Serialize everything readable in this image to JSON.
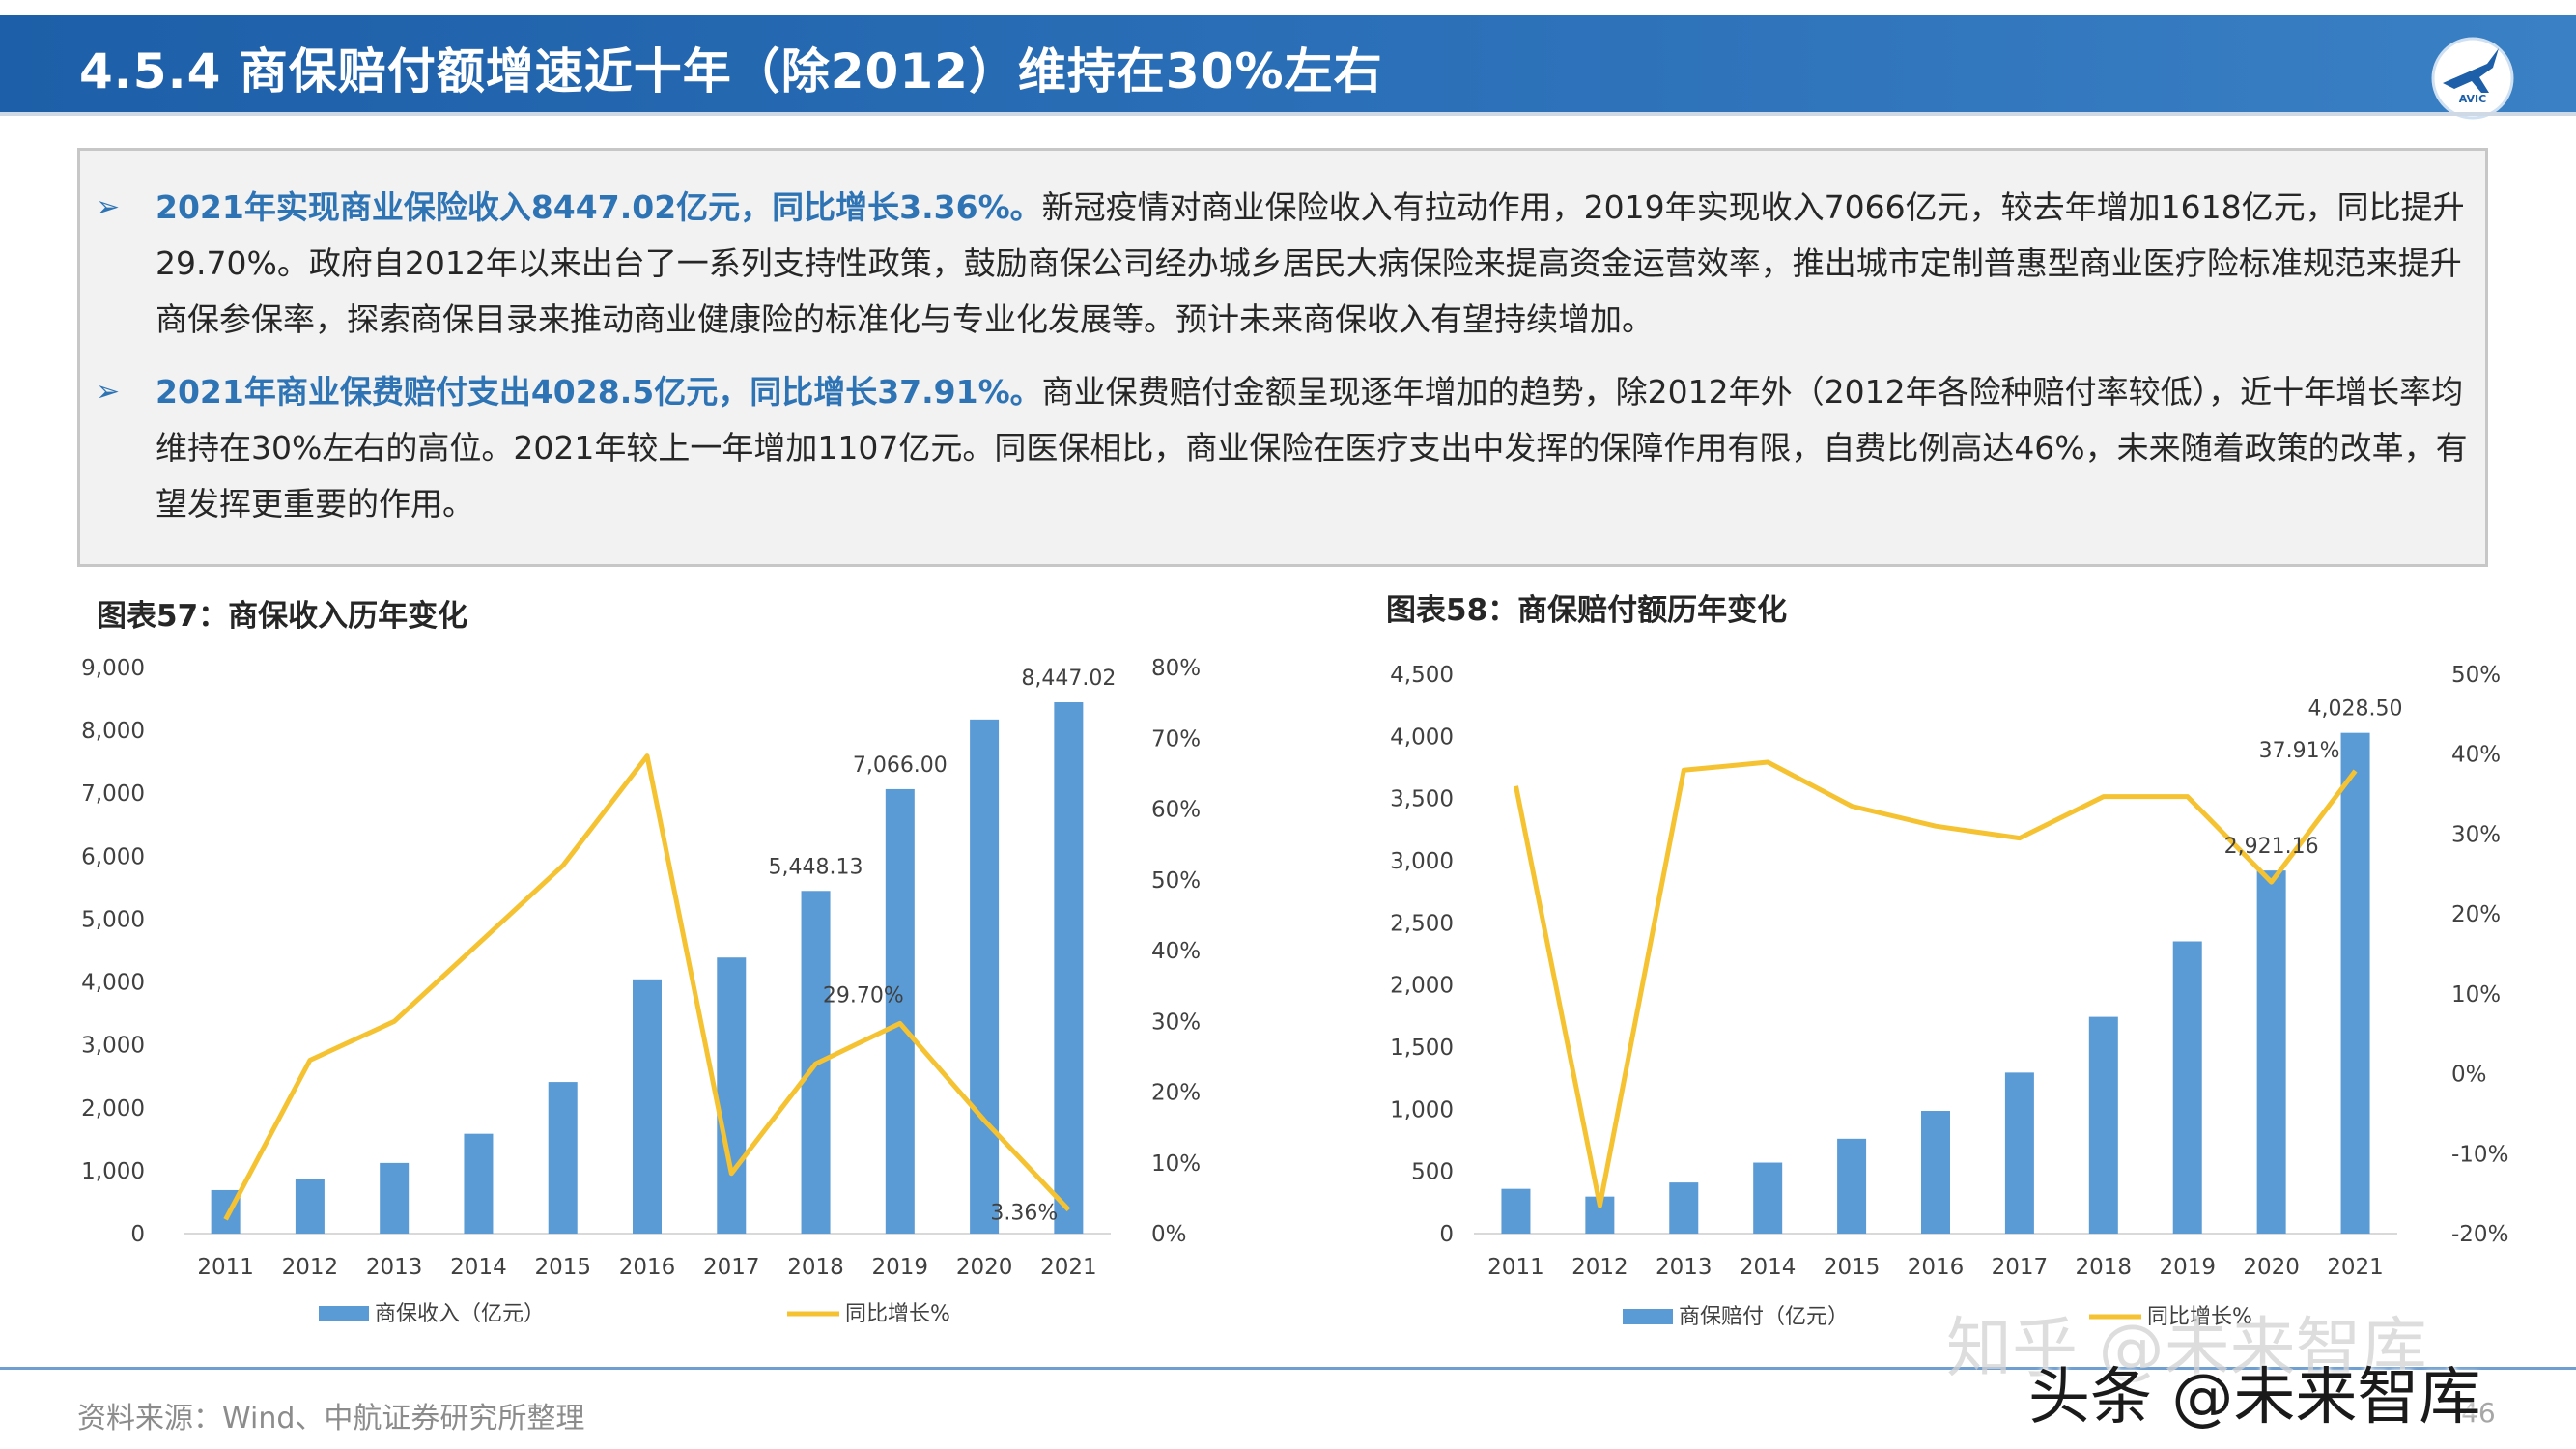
{
  "header": {
    "title": "4.5.4 商保赔付额增速近十年（除2012）维持在30%左右",
    "logo_text": "AVIC"
  },
  "summary": {
    "items": [
      {
        "lead": "2021年实现商业保险收入8447.02亿元，同比增长3.36%。",
        "body": "新冠疫情对商业保险收入有拉动作用，2019年实现收入7066亿元，较去年增加1618亿元，同比提升29.70%。政府自2012年以来出台了一系列支持性政策，鼓励商保公司经办城乡居民大病保险来提高资金运营效率，推出城市定制普惠型商业医疗险标准规范来提升商保参保率，探索商保目录来推动商业健康险的标准化与专业化发展等。预计未来商保收入有望持续增加。"
      },
      {
        "lead": "2021年商业保费赔付支出4028.5亿元，同比增长37.91%。",
        "body": "商业保费赔付金额呈现逐年增加的趋势，除2012年外（2012年各险种赔付率较低），近十年增长率均维持在30%左右的高位。2021年较上一年增加1107亿元。同医保相比，商业保险在医疗支出中发挥的保障作用有限，自费比例高达46%，未来随着政策的改革，有望发挥更重要的作用。"
      }
    ]
  },
  "chart_data": [
    {
      "type": "bar",
      "title": "图表57：商保收入历年变化",
      "categories": [
        "2011",
        "2012",
        "2013",
        "2014",
        "2015",
        "2016",
        "2017",
        "2018",
        "2019",
        "2020",
        "2021"
      ],
      "series": [
        {
          "name": "商保收入（亿元）",
          "type": "bar",
          "axis": "left",
          "values": [
            692,
            863,
            1123,
            1587,
            2410,
            4042,
            4389,
            5448.13,
            7066.0,
            8173,
            8447.02
          ]
        },
        {
          "name": "同比增长%",
          "type": "line",
          "axis": "right",
          "values": [
            0.02,
            0.245,
            0.3,
            0.41,
            0.52,
            0.675,
            0.085,
            0.24,
            0.297,
            0.16,
            0.0336
          ]
        }
      ],
      "bar_labels": [
        {
          "index": 7,
          "text": "5,448.13"
        },
        {
          "index": 8,
          "text": "7,066.00"
        },
        {
          "index": 10,
          "text": "8,447.02"
        }
      ],
      "line_labels": [
        {
          "index": 8,
          "text": "29.70%"
        },
        {
          "index": 10,
          "text": "3.36%"
        }
      ],
      "ylim_left": [
        0,
        9000
      ],
      "ylim_right": [
        0,
        0.8
      ],
      "yticks_left": [
        "0",
        "1,000",
        "2,000",
        "3,000",
        "4,000",
        "5,000",
        "6,000",
        "7,000",
        "8,000",
        "9,000"
      ],
      "yticks_right": [
        "0%",
        "10%",
        "20%",
        "30%",
        "40%",
        "50%",
        "60%",
        "70%",
        "80%"
      ],
      "grid": false,
      "legend_position": "bottom",
      "colors": {
        "bar": "#5b9bd5",
        "line": "#f5c231"
      }
    },
    {
      "type": "bar",
      "title": "图表58：商保赔付额历年变化",
      "categories": [
        "2011",
        "2012",
        "2013",
        "2014",
        "2015",
        "2016",
        "2017",
        "2018",
        "2019",
        "2020",
        "2021"
      ],
      "series": [
        {
          "name": "商保赔付（亿元）",
          "type": "bar",
          "axis": "left",
          "values": [
            360,
            298,
            411,
            571,
            763,
            987,
            1295,
            1744,
            2351,
            2921.16,
            4028.5
          ]
        },
        {
          "name": "同比增长%",
          "type": "line",
          "axis": "right",
          "values": [
            0.36,
            -0.165,
            0.38,
            0.39,
            0.335,
            0.31,
            0.295,
            0.347,
            0.347,
            0.24,
            0.3791
          ]
        }
      ],
      "bar_labels": [
        {
          "index": 9,
          "text": "2,921.16"
        },
        {
          "index": 10,
          "text": "4,028.50"
        }
      ],
      "line_labels": [
        {
          "index": 10,
          "text": "37.91%"
        }
      ],
      "ylim_left": [
        0,
        4500
      ],
      "ylim_right": [
        -0.2,
        0.5
      ],
      "yticks_left": [
        "0",
        "500",
        "1,000",
        "1,500",
        "2,000",
        "2,500",
        "3,000",
        "3,500",
        "4,000",
        "4,500"
      ],
      "yticks_right": [
        "-20%",
        "-10%",
        "0%",
        "10%",
        "20%",
        "30%",
        "40%",
        "50%"
      ],
      "grid": false,
      "legend_position": "bottom",
      "colors": {
        "bar": "#5b9bd5",
        "line": "#f5c231"
      }
    }
  ],
  "footer": {
    "source": "资料来源：Wind、中航证券研究所整理",
    "page_number": "46",
    "watermark_1": "知乎 @未来智库",
    "watermark_2": "头条 @未来智库"
  }
}
